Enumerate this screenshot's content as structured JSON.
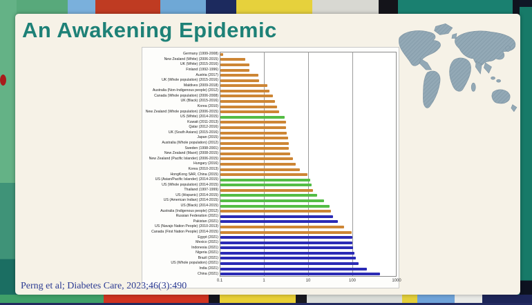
{
  "slide": {
    "title": "An Awakening Epidemic",
    "title_color": "#1e8177",
    "citation": "Perng et al; Diabetes Care, 2023;46(3):490",
    "citation_color": "#2b3a92",
    "background_color": "#f6f2e7"
  },
  "chart_data": {
    "type": "bar",
    "orientation": "horizontal",
    "x_scale": "log",
    "xlim": [
      0.1,
      1000
    ],
    "x_ticks": [
      "0.1",
      "1",
      "10",
      "100",
      "1000"
    ],
    "grid": true,
    "legend": "none",
    "bar_colors": {
      "orange": "#cd8635",
      "green": "#54bd45",
      "blue": "#2b2bb5"
    },
    "rows": [
      {
        "label": "Germany (1999-2008)",
        "value": 0.12,
        "group": "orange"
      },
      {
        "label": "New Zealand (White) (2006-2015)",
        "value": 0.38,
        "group": "orange"
      },
      {
        "label": "UK (White) (2015-2016)",
        "value": 0.47,
        "group": "orange"
      },
      {
        "label": "Finland (1992-1996)",
        "value": 0.47,
        "group": "orange"
      },
      {
        "label": "Austria (2017)",
        "value": 0.74,
        "group": "orange"
      },
      {
        "label": "UK (Whole population) (2015-2016)",
        "value": 0.78,
        "group": "orange"
      },
      {
        "label": "Maldives (2009-2018)",
        "value": 1.2,
        "group": "orange"
      },
      {
        "label": "Australia (Non-Indigenous people) (2012)",
        "value": 1.35,
        "group": "orange"
      },
      {
        "label": "Canada (Whole population) (2006-2008)",
        "value": 1.6,
        "group": "orange"
      },
      {
        "label": "UK (Black) (2015-2016)",
        "value": 1.8,
        "group": "orange"
      },
      {
        "label": "Korea (2010)",
        "value": 2.0,
        "group": "orange"
      },
      {
        "label": "New Zealand (Whole population) (2006-2015)",
        "value": 2.2,
        "group": "orange"
      },
      {
        "label": "US (White) (2014-2015)",
        "value": 2.9,
        "group": "green"
      },
      {
        "label": "Kuwait (2011-2013)",
        "value": 3.2,
        "group": "orange"
      },
      {
        "label": "Qatar (2012-2016)",
        "value": 3.2,
        "group": "orange"
      },
      {
        "label": "UK (South Asians) (2015-2016)",
        "value": 3.3,
        "group": "orange"
      },
      {
        "label": "Japan (2015)",
        "value": 3.5,
        "group": "orange"
      },
      {
        "label": "Australia (Whole population) (2012)",
        "value": 3.6,
        "group": "orange"
      },
      {
        "label": "Sweden (1998-2001)",
        "value": 3.7,
        "group": "orange"
      },
      {
        "label": "New Zealand (Maori) (2008-2015)",
        "value": 3.9,
        "group": "orange"
      },
      {
        "label": "New Zealand (Pacific Islander) (2006-2015)",
        "value": 4.5,
        "group": "orange"
      },
      {
        "label": "Hungary (2016)",
        "value": 5.3,
        "group": "orange"
      },
      {
        "label": "Korea (2010-2013)",
        "value": 6.4,
        "group": "orange"
      },
      {
        "label": "HongKong SAR, China (2015)",
        "value": 9.5,
        "group": "orange"
      },
      {
        "label": "US (Asian/Pacific Islander) (2014-2015)",
        "value": 11,
        "group": "green"
      },
      {
        "label": "US (Whole population) (2014-2015)",
        "value": 12,
        "group": "green"
      },
      {
        "label": "Thailand (1997-1999)",
        "value": 13,
        "group": "orange"
      },
      {
        "label": "US (Hispanic) (2014-2015)",
        "value": 16,
        "group": "green"
      },
      {
        "label": "US (American Indian) (2014-2015)",
        "value": 23,
        "group": "green"
      },
      {
        "label": "US (Black) (2014-2015)",
        "value": 30,
        "group": "green"
      },
      {
        "label": "Australia (Indigenous people) (2012)",
        "value": 33,
        "group": "orange"
      },
      {
        "label": "Russian Federation (2021)",
        "value": 37,
        "group": "blue"
      },
      {
        "label": "Pakistan (2021)",
        "value": 47,
        "group": "blue"
      },
      {
        "label": "US (Navajo Nation People) (2010-2013)",
        "value": 65,
        "group": "orange"
      },
      {
        "label": "Canada (First Nation People) (2014-2015)",
        "value": 97,
        "group": "orange"
      },
      {
        "label": "Egypt (2021)",
        "value": 100,
        "group": "blue"
      },
      {
        "label": "Mexico (2021)",
        "value": 100,
        "group": "blue"
      },
      {
        "label": "Indonesia (2021)",
        "value": 104,
        "group": "blue"
      },
      {
        "label": "Nigeria (2021)",
        "value": 112,
        "group": "blue"
      },
      {
        "label": "Brazil (2021)",
        "value": 120,
        "group": "blue"
      },
      {
        "label": "US (Whole population) (2021)",
        "value": 137,
        "group": "blue"
      },
      {
        "label": "India (2021)",
        "value": 210,
        "group": "blue"
      },
      {
        "label": "China (2021)",
        "value": 420,
        "group": "blue"
      }
    ]
  }
}
